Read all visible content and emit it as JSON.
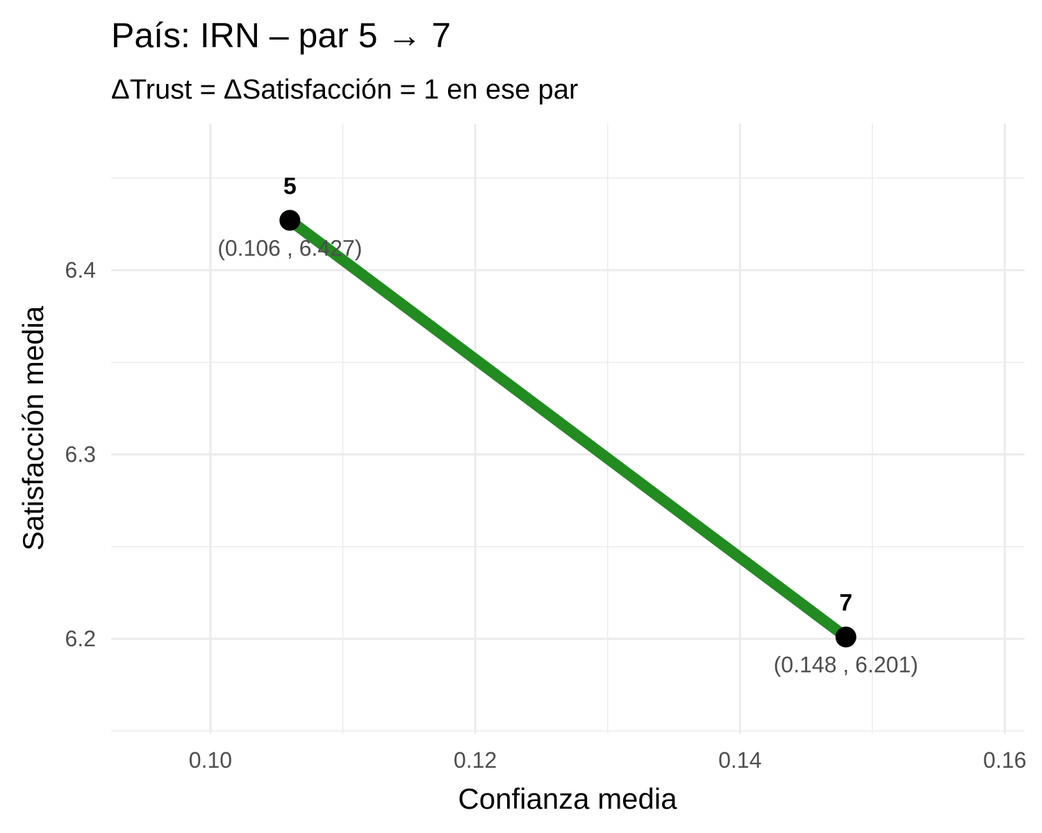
{
  "chart_data": {
    "type": "line",
    "title": "País: IRN – par 5 → 7",
    "subtitle": "ΔTrust = ΔSatisfacción = 1 en ese par",
    "xlabel": "Confianza media",
    "ylabel": "Satisfacción media",
    "xlim": [
      0.0925,
      0.1615
    ],
    "ylim": [
      6.1485,
      6.4795
    ],
    "x_ticks": [
      0.1,
      0.12,
      0.14,
      0.16
    ],
    "x_tick_labels": [
      "0.10",
      "0.12",
      "0.14",
      "0.16"
    ],
    "x_minor_ticks": [
      0.11,
      0.13,
      0.15
    ],
    "y_ticks": [
      6.2,
      6.3,
      6.4
    ],
    "y_tick_labels": [
      "6.2",
      "6.3",
      "6.4"
    ],
    "y_minor_ticks": [
      6.15,
      6.25,
      6.35,
      6.45
    ],
    "grid": true,
    "line_color": "#228B22",
    "point_color": "#000000",
    "points": [
      {
        "x": 0.106,
        "y": 6.427,
        "label": "5",
        "coord_label": "(0.106 , 6.427)"
      },
      {
        "x": 0.148,
        "y": 6.201,
        "label": "7",
        "coord_label": "(0.148 , 6.201)"
      }
    ]
  }
}
